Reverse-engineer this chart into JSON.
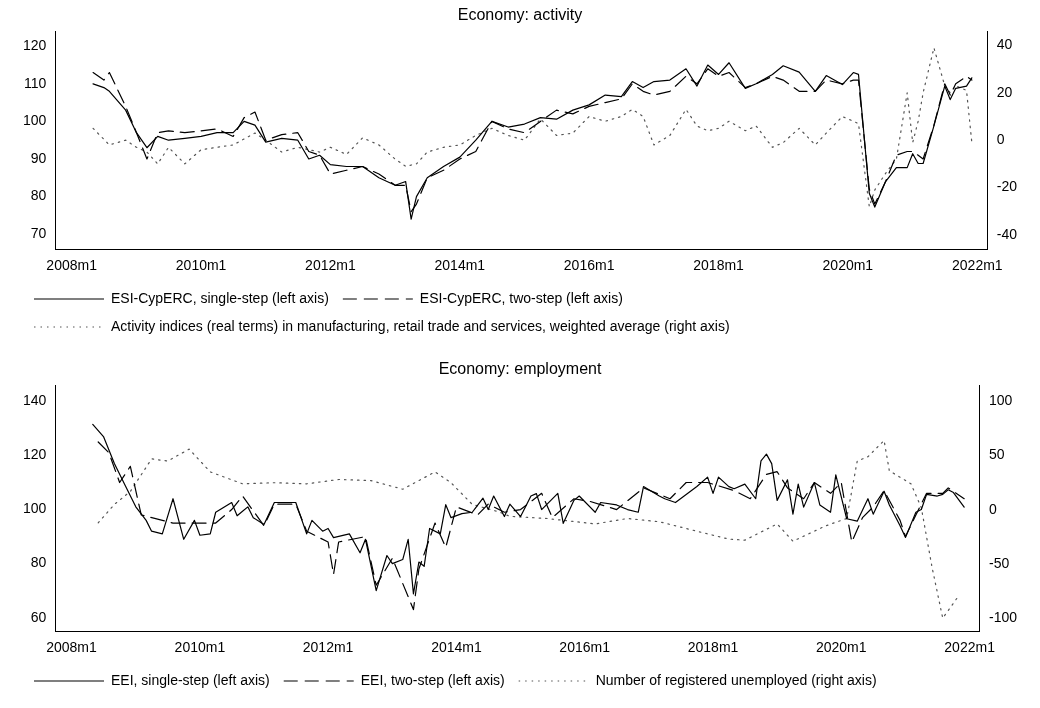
{
  "chart_data": [
    {
      "type": "line",
      "title": "Economy: activity",
      "xlim": [
        "2007-10",
        "2022-03"
      ],
      "xticks": [
        {
          "value": "2008-01",
          "label": "2008m1"
        },
        {
          "value": "2010-01",
          "label": "2010m1"
        },
        {
          "value": "2012-01",
          "label": "2012m1"
        },
        {
          "value": "2014-01",
          "label": "2014m1"
        },
        {
          "value": "2016-01",
          "label": "2016m1"
        },
        {
          "value": "2018-01",
          "label": "2018m1"
        },
        {
          "value": "2020-01",
          "label": "2020m1"
        },
        {
          "value": "2022-01",
          "label": "2022m1"
        }
      ],
      "ylim": [
        66,
        124
      ],
      "yticks": [
        70,
        80,
        90,
        100,
        110,
        120
      ],
      "y2lim": [
        -46,
        46
      ],
      "y2ticks": [
        -40,
        -20,
        0,
        20,
        40
      ],
      "grid": false,
      "legend": "bottom",
      "marker": "none",
      "x": [
        "2008-05",
        "2008-07",
        "2008-08",
        "2008-11",
        "2009-01",
        "2009-03",
        "2009-05",
        "2009-07",
        "2009-10",
        "2010-01",
        "2010-04",
        "2010-07",
        "2010-09",
        "2010-11",
        "2011-01",
        "2011-04",
        "2011-07",
        "2011-09",
        "2011-11",
        "2012-01",
        "2012-04",
        "2012-07",
        "2012-10",
        "2013-01",
        "2013-03",
        "2013-04",
        "2013-05",
        "2013-07",
        "2013-10",
        "2014-01",
        "2014-04",
        "2014-07",
        "2014-10",
        "2015-01",
        "2015-04",
        "2015-07",
        "2015-10",
        "2016-01",
        "2016-04",
        "2016-07",
        "2016-09",
        "2016-11",
        "2017-01",
        "2017-04",
        "2017-07",
        "2017-09",
        "2017-11",
        "2018-01",
        "2018-03",
        "2018-06",
        "2018-08",
        "2018-11",
        "2019-01",
        "2019-04",
        "2019-07",
        "2019-09",
        "2019-12",
        "2020-02",
        "2020-03",
        "2020-05",
        "2020-06",
        "2020-08",
        "2020-10",
        "2020-12",
        "2021-01",
        "2021-02",
        "2021-03",
        "2021-05",
        "2021-07",
        "2021-08",
        "2021-09",
        "2021-11",
        "2021-12"
      ],
      "series": [
        {
          "name": "ESI-CypERC, single-step (left axis)",
          "color": "#000000",
          "line_style": "solid",
          "values": [
            110,
            109,
            108,
            103,
            97,
            93,
            96,
            95,
            95.5,
            96,
            97,
            97,
            100,
            99,
            94.5,
            95.5,
            95,
            90,
            91,
            88.5,
            88,
            88,
            85,
            83,
            84,
            74,
            80,
            85,
            88,
            90.5,
            95,
            100,
            98.5,
            99.3,
            101,
            100.6,
            103,
            104.4,
            107,
            106.6,
            110.6,
            109,
            110.6,
            111,
            114,
            109.4,
            115,
            112.5,
            115.6,
            108.8,
            110,
            112.5,
            114.8,
            113.1,
            108,
            112.2,
            109.8,
            113,
            112.5,
            80.9,
            77.2,
            84,
            87.7,
            87.7,
            91.4,
            88.8,
            88.8,
            98.8,
            109.4,
            105.8,
            108.8,
            109.4,
            111.6
          ]
        },
        {
          "name": "ESI-CypERC, two-step (left axis)",
          "color": "#000000",
          "line_style": "dashed",
          "values": [
            113,
            111,
            113,
            104,
            97,
            90,
            97,
            97.5,
            97,
            97.5,
            98,
            96,
            101,
            102.5,
            95,
            96.5,
            97,
            92,
            91,
            86,
            87,
            88,
            86,
            83,
            83,
            76,
            78,
            85,
            87,
            90,
            92,
            100,
            98,
            97,
            100,
            103,
            102,
            104,
            105,
            106,
            110,
            108,
            107,
            108,
            112,
            110,
            114,
            112,
            113,
            109,
            110,
            112,
            111,
            108,
            108,
            111,
            110,
            111,
            111,
            82,
            78,
            84,
            91,
            92,
            92,
            91,
            90,
            99,
            110,
            107,
            110,
            112,
            111
          ]
        },
        {
          "name": "Activity indices (real terms) in manufacturing, retail trade and services, weighted average (right axis)",
          "color": "#555555",
          "line_style": "dotted",
          "axis": "y2",
          "x": [
            "2008-05",
            "2008-08",
            "2008-11",
            "2009-01",
            "2009-03",
            "2009-05",
            "2009-07",
            "2009-10",
            "2010-01",
            "2010-04",
            "2010-07",
            "2010-11",
            "2011-01",
            "2011-04",
            "2011-07",
            "2011-11",
            "2012-01",
            "2012-04",
            "2012-07",
            "2012-10",
            "2013-01",
            "2013-03",
            "2013-05",
            "2013-07",
            "2013-10",
            "2014-01",
            "2014-04",
            "2014-07",
            "2014-10",
            "2015-01",
            "2015-04",
            "2015-07",
            "2015-10",
            "2016-01",
            "2016-04",
            "2016-07",
            "2016-09",
            "2016-11",
            "2017-01",
            "2017-04",
            "2017-07",
            "2017-09",
            "2017-11",
            "2018-01",
            "2018-03",
            "2018-06",
            "2018-08",
            "2018-11",
            "2019-01",
            "2019-04",
            "2019-07",
            "2019-09",
            "2019-12",
            "2020-02",
            "2020-03",
            "2020-05",
            "2020-06",
            "2020-08",
            "2020-10",
            "2020-12",
            "2021-01",
            "2021-02",
            "2021-03",
            "2021-05",
            "2021-07",
            "2021-08",
            "2021-09",
            "2021-11",
            "2021-12"
          ],
          "values": [
            5,
            -2,
            0,
            -3,
            -5,
            -10,
            -3,
            -10,
            -4,
            -3,
            -2,
            3,
            0,
            -5,
            -3,
            -5,
            -3,
            -6,
            1,
            -2,
            -8,
            -11,
            -10,
            -5,
            -3,
            -2,
            2,
            5,
            2,
            0,
            9,
            2,
            3,
            10,
            8,
            10,
            13,
            10,
            -2,
            2,
            13,
            6,
            4,
            5,
            8,
            4,
            6,
            -3,
            -1,
            5,
            -2,
            3,
            10,
            8,
            7,
            -28,
            -21,
            -14,
            -8,
            20,
            -1,
            8,
            20,
            39,
            23,
            20,
            23,
            21,
            -1
          ]
        }
      ]
    },
    {
      "type": "line",
      "title": "Economy: employment",
      "xlim": [
        "2007-10",
        "2022-03"
      ],
      "xticks": [
        {
          "value": "2008-01",
          "label": "2008m1"
        },
        {
          "value": "2010-01",
          "label": "2010m1"
        },
        {
          "value": "2012-01",
          "label": "2012m1"
        },
        {
          "value": "2014-01",
          "label": "2014m1"
        },
        {
          "value": "2016-01",
          "label": "2016m1"
        },
        {
          "value": "2018-01",
          "label": "2018m1"
        },
        {
          "value": "2020-01",
          "label": "2020m1"
        },
        {
          "value": "2022-01",
          "label": "2022m1"
        }
      ],
      "ylim": [
        55,
        146
      ],
      "yticks": [
        60,
        80,
        100,
        120,
        140
      ],
      "y2lim": [
        -112,
        115
      ],
      "y2ticks": [
        -100,
        -50,
        0,
        50,
        100
      ],
      "grid": false,
      "legend": "bottom",
      "marker": "none",
      "series": [
        {
          "name": "EEI, single-step (left axis)",
          "color": "#000000",
          "line_style": "solid",
          "x": [
            "2008-05",
            "2008-07",
            "2008-09",
            "2008-11",
            "2009-01",
            "2009-03",
            "2009-04",
            "2009-06",
            "2009-08",
            "2009-10",
            "2009-12",
            "2010-01",
            "2010-03",
            "2010-04",
            "2010-07",
            "2010-08",
            "2010-10",
            "2010-11",
            "2011-01",
            "2011-03",
            "2011-07",
            "2011-09",
            "2011-10",
            "2011-12",
            "2012-01",
            "2012-02",
            "2012-05",
            "2012-07",
            "2012-08",
            "2012-10",
            "2012-12",
            "2013-01",
            "2013-03",
            "2013-04",
            "2013-05",
            "2013-06",
            "2013-07",
            "2013-08",
            "2013-10",
            "2013-11",
            "2013-12",
            "2014-02",
            "2014-04",
            "2014-06",
            "2014-07",
            "2014-08",
            "2014-10",
            "2014-11",
            "2015-01",
            "2015-03",
            "2015-04",
            "2015-05",
            "2015-08",
            "2015-09",
            "2015-11",
            "2015-12",
            "2016-03",
            "2016-04",
            "2016-07",
            "2016-09",
            "2016-11",
            "2016-12",
            "2017-03",
            "2017-04",
            "2017-06",
            "2017-10",
            "2017-12",
            "2018-01",
            "2018-02",
            "2018-04",
            "2018-05",
            "2018-07",
            "2018-09",
            "2018-10",
            "2018-11",
            "2018-12",
            "2019-01",
            "2019-03",
            "2019-04",
            "2019-05",
            "2019-06",
            "2019-08",
            "2019-09",
            "2019-11",
            "2019-12",
            "2020-02",
            "2020-04",
            "2020-06",
            "2020-07",
            "2020-09",
            "2020-10",
            "2020-12",
            "2021-01",
            "2021-03",
            "2021-04",
            "2021-05",
            "2021-07",
            "2021-08",
            "2021-09",
            "2021-10",
            "2021-12"
          ],
          "values": [
            131.5,
            127,
            117,
            109,
            101,
            96,
            92,
            91,
            104,
            89,
            96,
            90.5,
            91,
            99,
            102.6,
            97.7,
            101,
            97,
            94.5,
            102.6,
            102.6,
            91,
            96,
            92,
            93,
            89.6,
            91,
            84,
            89,
            70,
            83,
            80,
            81.5,
            89,
            68.8,
            80.6,
            79,
            93,
            91,
            101.8,
            97,
            98.5,
            99,
            104.2,
            100,
            105,
            97.4,
            102,
            97.4,
            105,
            105.9,
            100,
            106,
            94.9,
            103.4,
            105,
            99,
            102.6,
            101.7,
            100,
            99,
            108.5,
            105,
            104,
            102.6,
            108.5,
            112,
            106,
            112,
            108.5,
            107.7,
            109.4,
            104,
            118,
            120.5,
            117,
            103.4,
            111,
            98.3,
            109.4,
            100.9,
            110,
            101.7,
            99,
            112.8,
            96.6,
            95.7,
            104,
            98.3,
            106.8,
            101.7,
            94,
            89.7,
            99,
            100,
            105.6,
            105,
            105.6,
            107.3,
            106.3,
            100.9
          ]
        },
        {
          "name": "EEI, two-step (left axis)",
          "color": "#000000",
          "line_style": "dashed",
          "x": [
            "2008-06",
            "2008-08",
            "2008-10",
            "2008-12",
            "2009-02",
            "2009-08",
            "2009-12",
            "2010-04",
            "2010-07",
            "2010-09",
            "2011-01",
            "2011-03",
            "2011-07",
            "2011-09",
            "2012-01",
            "2012-02",
            "2012-03",
            "2012-08",
            "2012-10",
            "2013-01",
            "2013-05",
            "2013-06",
            "2013-09",
            "2013-11",
            "2014-01",
            "2014-05",
            "2014-07",
            "2014-10",
            "2015-01",
            "2015-05",
            "2015-07",
            "2015-11",
            "2016-02",
            "2016-07",
            "2016-12",
            "2017-05",
            "2017-08",
            "2017-12",
            "2018-05",
            "2018-08",
            "2018-11",
            "2019-01",
            "2019-03",
            "2019-06",
            "2019-08",
            "2019-11",
            "2020-01",
            "2020-03",
            "2020-05",
            "2020-07",
            "2020-09",
            "2020-12",
            "2021-01",
            "2021-03",
            "2021-05",
            "2021-08",
            "2021-09",
            "2021-12"
          ],
          "values": [
            125,
            121,
            110,
            116,
            98,
            95,
            95,
            95,
            100,
            105,
            94,
            102,
            102,
            92,
            88,
            76,
            88,
            90,
            72,
            82,
            63,
            78,
            95,
            86,
            101,
            98,
            102,
            99,
            100,
            106,
            97,
            104,
            103,
            100,
            108,
            104,
            110,
            110,
            107,
            104,
            113,
            114,
            108,
            104,
            110,
            106,
            110,
            88,
            97,
            101,
            107,
            96,
            90,
            98,
            106,
            106,
            108,
            104
          ]
        },
        {
          "name": "Number of registered unemployed (right axis)",
          "color": "#555555",
          "line_style": "dotted",
          "axis": "y2",
          "x": [
            "2008-06",
            "2008-09",
            "2008-12",
            "2009-04",
            "2009-07",
            "2009-11",
            "2010-03",
            "2010-09",
            "2011-03",
            "2011-09",
            "2012-03",
            "2012-09",
            "2013-03",
            "2013-09",
            "2013-12",
            "2014-04",
            "2014-09",
            "2014-11",
            "2015-06",
            "2016-03",
            "2016-09",
            "2017-03",
            "2017-11",
            "2018-04",
            "2018-07",
            "2019-01",
            "2019-04",
            "2019-10",
            "2020-02",
            "2020-04",
            "2020-06",
            "2020-09",
            "2020-10",
            "2021-02",
            "2021-04",
            "2021-06",
            "2021-08",
            "2021-11"
          ],
          "values": [
            -12,
            5,
            17,
            47,
            45,
            56,
            35,
            24,
            25,
            24,
            28,
            27,
            19,
            35,
            25,
            5,
            -2,
            -6,
            -8,
            -13,
            -8,
            -11,
            -21,
            -27,
            -28,
            -13,
            -29,
            -15,
            -8,
            45,
            49,
            64,
            36,
            24,
            2,
            -53,
            -100,
            -79
          ]
        }
      ]
    }
  ]
}
